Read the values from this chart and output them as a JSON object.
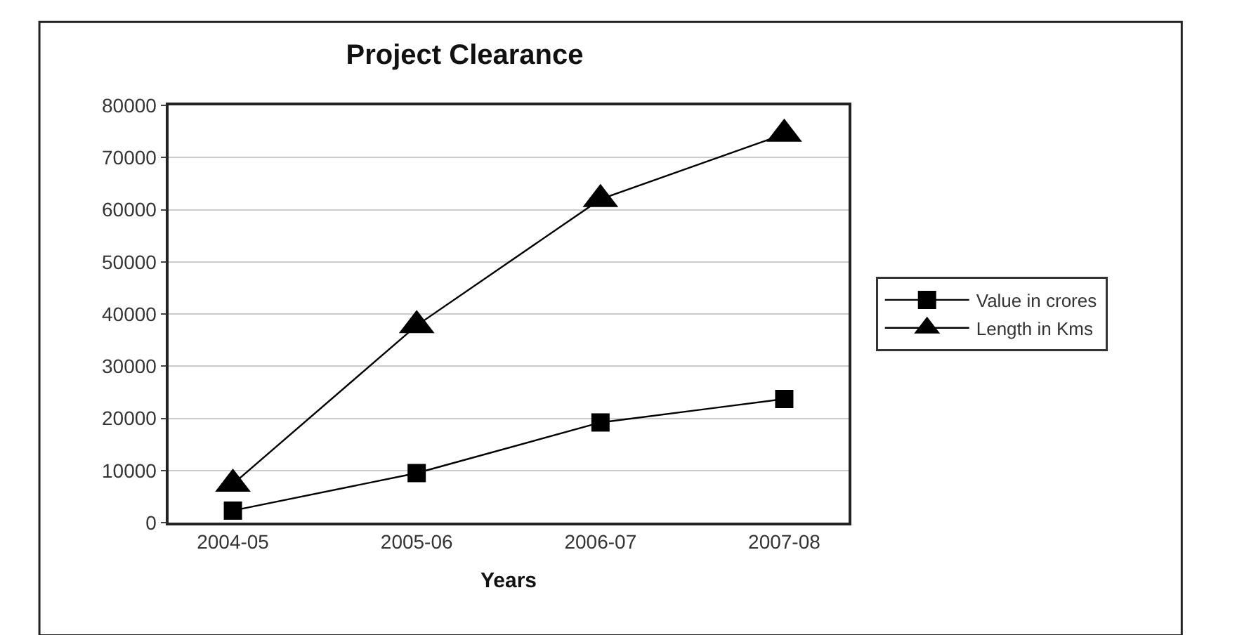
{
  "chart_data": {
    "type": "line",
    "title": "Project Clearance",
    "xlabel": "Years",
    "categories": [
      "2004-05",
      "2005-06",
      "2006-07",
      "2007-08"
    ],
    "series": [
      {
        "name": "Value in crores",
        "color": "#000000",
        "marker": "square",
        "values": [
          2300,
          9500,
          19200,
          23700
        ]
      },
      {
        "name": "Length in Kms",
        "color": "#000000",
        "marker": "triangle",
        "values": [
          7400,
          37800,
          62000,
          74500
        ]
      }
    ],
    "ylim": [
      0,
      80000
    ],
    "yticks": [
      0,
      10000,
      20000,
      30000,
      40000,
      50000,
      60000,
      70000,
      80000
    ],
    "grid": "y",
    "legend": "right",
    "line_style": "solid"
  }
}
